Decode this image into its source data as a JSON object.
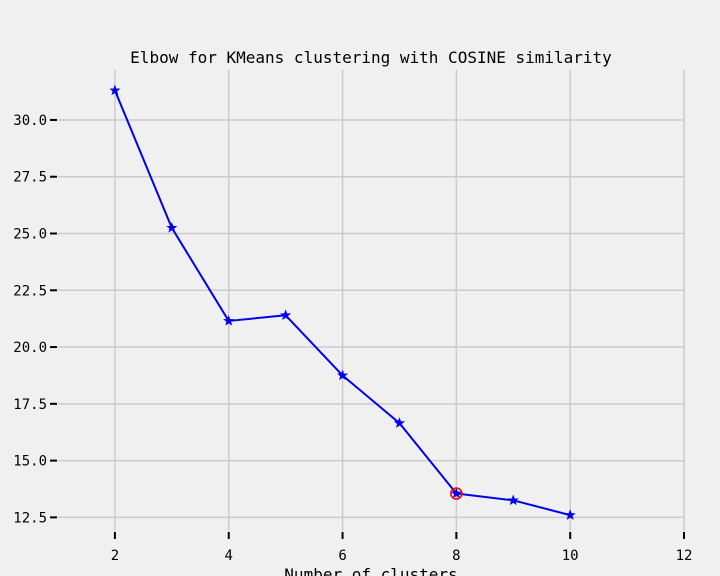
{
  "chart_data": {
    "type": "line",
    "title": "Elbow for KMeans clustering with COSINE similarity",
    "xlabel": "Number of clusters",
    "ylabel": "",
    "xlim": [
      1,
      12
    ],
    "ylim": [
      11.9,
      32.2
    ],
    "xticks": [
      2,
      4,
      6,
      8,
      10,
      12
    ],
    "yticks": [
      "12.5",
      "15.0",
      "17.5",
      "20.0",
      "22.5",
      "25.0",
      "27.5",
      "30.0"
    ],
    "grid": true,
    "series": [
      {
        "color": "#0000ee",
        "marker": "star",
        "x": [
          2,
          3,
          4,
          5,
          6,
          7,
          8,
          9,
          10
        ],
        "y": [
          31.3,
          25.25,
          21.15,
          21.4,
          18.75,
          16.65,
          13.55,
          13.25,
          12.6
        ]
      }
    ],
    "highlight": {
      "x": 8,
      "y": 13.55,
      "color": "#ff0000",
      "marker": "open-circle"
    }
  }
}
